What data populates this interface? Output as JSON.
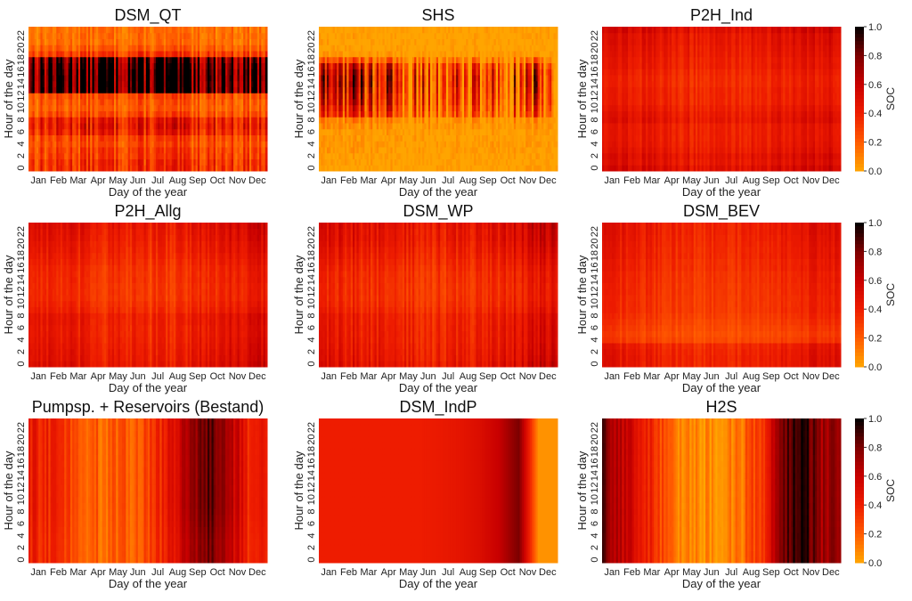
{
  "colorscale": {
    "label": "SOC",
    "ticks": [
      "0.0",
      "0.2",
      "0.4",
      "0.6",
      "0.8",
      "1.0"
    ],
    "stops": [
      "#ffa500",
      "#ff5a00",
      "#ee1c00",
      "#c80000",
      "#7c0000",
      "#000000"
    ]
  },
  "chart_data": [
    {
      "type": "heatmap",
      "title": "DSM_QT",
      "xlabel": "Day of the year",
      "ylabel": "Hour of the day",
      "x_tick_labels": [
        "Jan",
        "Feb",
        "Mar",
        "Apr",
        "May",
        "Jun",
        "Jul",
        "Aug",
        "Sep",
        "Oct",
        "Nov",
        "Dec"
      ],
      "y_tick_labels": [
        "0",
        "2",
        "4",
        "6",
        "8",
        "10",
        "12",
        "14",
        "16",
        "18",
        "20",
        "22"
      ],
      "x_range": [
        1,
        365
      ],
      "y_range": [
        0,
        23
      ],
      "value_range": [
        0,
        1
      ],
      "hour_profile": [
        0.35,
        0.35,
        0.3,
        0.3,
        0.25,
        0.28,
        0.4,
        0.45,
        0.42,
        0.25,
        0.2,
        0.22,
        0.25,
        0.95,
        0.95,
        0.97,
        0.95,
        0.9,
        0.85,
        0.3,
        0.2,
        0.15,
        0.15,
        0.15
      ],
      "season_profile": [
        0.95,
        0.95,
        1.0,
        1.0,
        1.0,
        1.0,
        1.0,
        1.0,
        1.0,
        1.0,
        0.95,
        0.95
      ],
      "day_variation": 0.5
    },
    {
      "type": "heatmap",
      "title": "SHS",
      "xlabel": "Day of the year",
      "ylabel": "Hour of the day",
      "x_tick_labels": [
        "Jan",
        "Feb",
        "Mar",
        "Apr",
        "May",
        "Jun",
        "Jul",
        "Aug",
        "Sep",
        "Oct",
        "Nov",
        "Dec"
      ],
      "y_tick_labels": [
        "0",
        "2",
        "4",
        "6",
        "8",
        "10",
        "12",
        "14",
        "16",
        "18",
        "20",
        "22"
      ],
      "x_range": [
        1,
        365
      ],
      "y_range": [
        0,
        23
      ],
      "value_range": [
        0,
        1
      ],
      "hour_profile": [
        0.02,
        0.02,
        0.02,
        0.05,
        0.05,
        0.05,
        0.05,
        0.1,
        0.15,
        0.5,
        0.6,
        0.7,
        0.75,
        0.8,
        0.85,
        0.85,
        0.8,
        0.7,
        0.3,
        0.05,
        0.02,
        0.02,
        0.02,
        0.02
      ],
      "season_profile": [
        0.6,
        0.7,
        0.7,
        0.6,
        0.4,
        0.3,
        0.3,
        0.35,
        0.4,
        0.4,
        0.5,
        0.5
      ],
      "day_variation": 0.6
    },
    {
      "type": "heatmap",
      "title": "P2H_Ind",
      "xlabel": "Day of the year",
      "ylabel": "Hour of the day",
      "x_tick_labels": [
        "Jan",
        "Feb",
        "Mar",
        "Apr",
        "May",
        "Jun",
        "Jul",
        "Aug",
        "Sep",
        "Oct",
        "Nov",
        "Dec"
      ],
      "y_tick_labels": [
        "0",
        "2",
        "4",
        "6",
        "8",
        "10",
        "12",
        "14",
        "16",
        "18",
        "20",
        "22"
      ],
      "x_range": [
        1,
        365
      ],
      "y_range": [
        0,
        23
      ],
      "value_range": [
        0,
        1
      ],
      "hour_profile": [
        0.55,
        0.5,
        0.52,
        0.48,
        0.46,
        0.45,
        0.45,
        0.45,
        0.5,
        0.48,
        0.45,
        0.42,
        0.42,
        0.42,
        0.4,
        0.4,
        0.42,
        0.45,
        0.45,
        0.47,
        0.48,
        0.5,
        0.5,
        0.55
      ],
      "season_profile": [
        1.05,
        1.0,
        0.95,
        0.9,
        0.88,
        0.85,
        0.85,
        0.88,
        0.9,
        0.95,
        1.0,
        1.05
      ],
      "day_variation": 0.15
    },
    {
      "type": "heatmap",
      "title": "P2H_Allg",
      "xlabel": "Day of the year",
      "ylabel": "Hour of the day",
      "x_tick_labels": [
        "Jan",
        "Feb",
        "Mar",
        "Apr",
        "May",
        "Jun",
        "Jul",
        "Aug",
        "Sep",
        "Oct",
        "Nov",
        "Dec"
      ],
      "y_tick_labels": [
        "0",
        "2",
        "4",
        "6",
        "8",
        "10",
        "12",
        "14",
        "16",
        "18",
        "20",
        "22"
      ],
      "x_range": [
        1,
        365
      ],
      "y_range": [
        0,
        23
      ],
      "value_range": [
        0,
        1
      ],
      "hour_profile": [
        0.5,
        0.48,
        0.47,
        0.46,
        0.45,
        0.44,
        0.44,
        0.45,
        0.45,
        0.4,
        0.38,
        0.36,
        0.36,
        0.36,
        0.37,
        0.37,
        0.38,
        0.4,
        0.42,
        0.44,
        0.45,
        0.47,
        0.48,
        0.5
      ],
      "season_profile": [
        1.05,
        1.0,
        0.95,
        0.9,
        0.85,
        0.82,
        0.82,
        0.85,
        0.9,
        0.95,
        1.05,
        1.15
      ],
      "day_variation": 0.2
    },
    {
      "type": "heatmap",
      "title": "DSM_WP",
      "xlabel": "Day of the year",
      "ylabel": "Hour of the day",
      "x_tick_labels": [
        "Jan",
        "Feb",
        "Mar",
        "Apr",
        "May",
        "Jun",
        "Jul",
        "Aug",
        "Sep",
        "Oct",
        "Nov",
        "Dec"
      ],
      "y_tick_labels": [
        "0",
        "2",
        "4",
        "6",
        "8",
        "10",
        "12",
        "14",
        "16",
        "18",
        "20",
        "22"
      ],
      "x_range": [
        1,
        365
      ],
      "y_range": [
        0,
        23
      ],
      "value_range": [
        0,
        1
      ],
      "hour_profile": [
        0.5,
        0.48,
        0.47,
        0.46,
        0.45,
        0.45,
        0.45,
        0.44,
        0.44,
        0.4,
        0.38,
        0.37,
        0.37,
        0.37,
        0.38,
        0.38,
        0.4,
        0.42,
        0.44,
        0.46,
        0.48,
        0.5,
        0.5,
        0.52
      ],
      "season_profile": [
        1.05,
        1.0,
        0.95,
        0.9,
        0.85,
        0.82,
        0.82,
        0.85,
        0.9,
        0.95,
        1.05,
        1.15
      ],
      "day_variation": 0.2
    },
    {
      "type": "heatmap",
      "title": "DSM_BEV",
      "xlabel": "Day of the year",
      "ylabel": "Hour of the day",
      "x_tick_labels": [
        "Jan",
        "Feb",
        "Mar",
        "Apr",
        "May",
        "Jun",
        "Jul",
        "Aug",
        "Sep",
        "Oct",
        "Nov",
        "Dec"
      ],
      "y_tick_labels": [
        "0",
        "2",
        "4",
        "6",
        "8",
        "10",
        "12",
        "14",
        "16",
        "18",
        "20",
        "22"
      ],
      "x_range": [
        1,
        365
      ],
      "y_range": [
        0,
        23
      ],
      "value_range": [
        0,
        1
      ],
      "hour_profile": [
        0.45,
        0.45,
        0.44,
        0.42,
        0.3,
        0.28,
        0.3,
        0.32,
        0.34,
        0.36,
        0.36,
        0.36,
        0.37,
        0.37,
        0.38,
        0.38,
        0.4,
        0.4,
        0.42,
        0.42,
        0.43,
        0.44,
        0.45,
        0.45
      ],
      "season_profile": [
        1.05,
        1.0,
        0.95,
        0.9,
        0.85,
        0.82,
        0.82,
        0.85,
        0.9,
        0.95,
        1.05,
        1.1
      ],
      "day_variation": 0.15
    },
    {
      "type": "heatmap",
      "title": "Pumpsp. + Reservoirs (Bestand)",
      "xlabel": "Day of the year",
      "ylabel": "Hour of the day",
      "x_tick_labels": [
        "Jan",
        "Feb",
        "Mar",
        "Apr",
        "May",
        "Jun",
        "Jul",
        "Aug",
        "Sep",
        "Oct",
        "Nov",
        "Dec"
      ],
      "y_tick_labels": [
        "0",
        "2",
        "4",
        "6",
        "8",
        "10",
        "12",
        "14",
        "16",
        "18",
        "20",
        "22"
      ],
      "x_range": [
        1,
        365
      ],
      "y_range": [
        0,
        23
      ],
      "value_range": [
        0,
        1
      ],
      "hour_profile": [
        0.94,
        0.94,
        0.94,
        0.94,
        0.95,
        0.96,
        0.97,
        0.98,
        0.99,
        1.0,
        1.0,
        1.0,
        1.0,
        1.0,
        1.0,
        1.0,
        1.0,
        1.0,
        1.0,
        1.0,
        1.0,
        1.0,
        1.0,
        1.0
      ],
      "season_profile": [
        0.42,
        0.38,
        0.3,
        0.2,
        0.18,
        0.2,
        0.28,
        0.45,
        0.65,
        0.88,
        0.7,
        0.4
      ],
      "day_variation": 0.1
    },
    {
      "type": "heatmap",
      "title": "DSM_IndP",
      "xlabel": "Day of the year",
      "ylabel": "Hour of the day",
      "x_tick_labels": [
        "Jan",
        "Feb",
        "Mar",
        "Apr",
        "May",
        "Jun",
        "Jul",
        "Aug",
        "Sep",
        "Oct",
        "Nov",
        "Dec"
      ],
      "y_tick_labels": [
        "0",
        "2",
        "4",
        "6",
        "8",
        "10",
        "12",
        "14",
        "16",
        "18",
        "20",
        "22"
      ],
      "x_range": [
        1,
        365
      ],
      "y_range": [
        0,
        23
      ],
      "value_range": [
        0,
        1
      ],
      "hour_profile": [
        1,
        1,
        1,
        1,
        1,
        1,
        1,
        1,
        1,
        1,
        1,
        1,
        1,
        1,
        1,
        1,
        1,
        1,
        1,
        1,
        1,
        1,
        1,
        1
      ],
      "season_profile": [
        0.4,
        0.4,
        0.4,
        0.4,
        0.4,
        0.4,
        0.42,
        0.45,
        0.5,
        0.6,
        0.8,
        0.05
      ],
      "day_variation": 0.0
    },
    {
      "type": "heatmap",
      "title": "H2S",
      "xlabel": "Day of the year",
      "ylabel": "Hour of the day",
      "x_tick_labels": [
        "Jan",
        "Feb",
        "Mar",
        "Apr",
        "May",
        "Jun",
        "Jul",
        "Aug",
        "Sep",
        "Oct",
        "Nov",
        "Dec"
      ],
      "y_tick_labels": [
        "0",
        "2",
        "4",
        "6",
        "8",
        "10",
        "12",
        "14",
        "16",
        "18",
        "20",
        "22"
      ],
      "x_range": [
        1,
        365
      ],
      "y_range": [
        0,
        23
      ],
      "value_range": [
        0,
        1
      ],
      "hour_profile": [
        1,
        1,
        1,
        1,
        1,
        1,
        1,
        1,
        1,
        1,
        1,
        1,
        1,
        1,
        1,
        1,
        1,
        1,
        1,
        1,
        1,
        1,
        1,
        1
      ],
      "season_profile": [
        0.85,
        0.6,
        0.45,
        0.25,
        0.1,
        0.05,
        0.05,
        0.15,
        0.35,
        0.8,
        0.95,
        0.7
      ],
      "day_variation": 0.1
    }
  ]
}
